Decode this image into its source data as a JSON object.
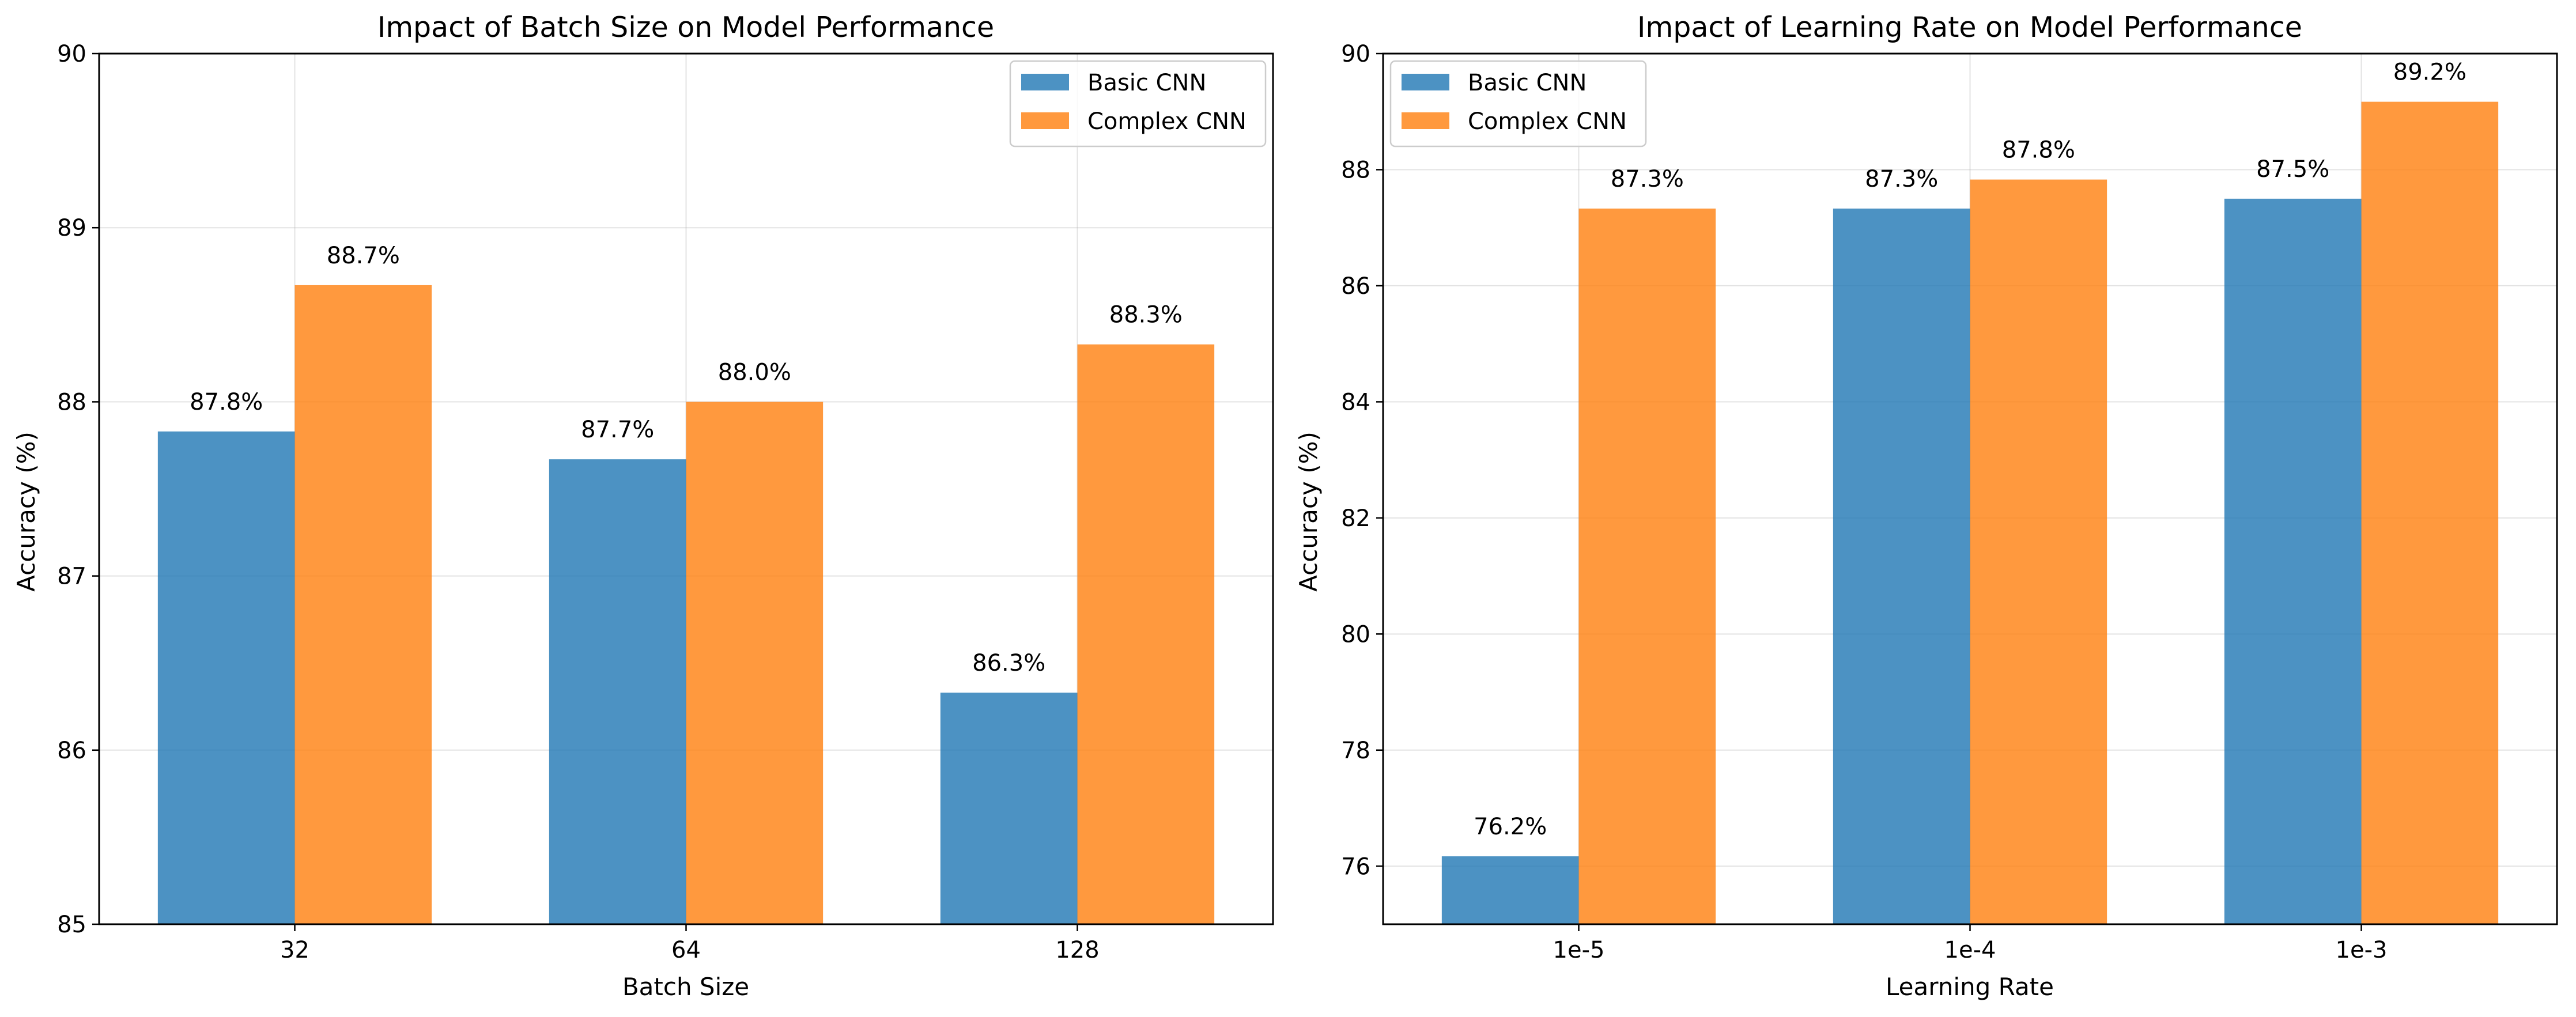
{
  "colors": {
    "basic": "#1f77b4",
    "complex": "#ff7f0e",
    "grid": "#b0b0b0",
    "axis": "#000000",
    "legend_border": "#cccccc"
  },
  "chart_data": [
    {
      "type": "bar",
      "title": "Impact of Batch Size on Model Performance",
      "xlabel": "Batch Size",
      "ylabel": "Accuracy (%)",
      "categories": [
        "32",
        "64",
        "128"
      ],
      "ylim": [
        85,
        90
      ],
      "yticks": [
        85,
        86,
        87,
        88,
        89,
        90
      ],
      "grid": true,
      "legend_position": "top-right",
      "series": [
        {
          "name": "Basic CNN",
          "color_key": "basic",
          "values": [
            87.83,
            87.67,
            86.33
          ],
          "labels": [
            "87.8%",
            "87.7%",
            "86.3%"
          ]
        },
        {
          "name": "Complex CNN",
          "color_key": "complex",
          "values": [
            88.67,
            88.0,
            88.33
          ],
          "labels": [
            "88.7%",
            "88.0%",
            "88.3%"
          ]
        }
      ]
    },
    {
      "type": "bar",
      "title": "Impact of Learning Rate on Model Performance",
      "xlabel": "Learning Rate",
      "ylabel": "Accuracy (%)",
      "categories": [
        "1e-5",
        "1e-4",
        "1e-3"
      ],
      "ylim": [
        75,
        90
      ],
      "yticks": [
        76,
        78,
        80,
        82,
        84,
        86,
        88,
        90
      ],
      "grid": true,
      "legend_position": "top-left",
      "series": [
        {
          "name": "Basic CNN",
          "color_key": "basic",
          "values": [
            76.17,
            87.33,
            87.5
          ],
          "labels": [
            "76.2%",
            "87.3%",
            "87.5%"
          ]
        },
        {
          "name": "Complex CNN",
          "color_key": "complex",
          "values": [
            87.33,
            87.83,
            89.17
          ],
          "labels": [
            "87.3%",
            "87.8%",
            "89.2%"
          ]
        }
      ]
    }
  ]
}
